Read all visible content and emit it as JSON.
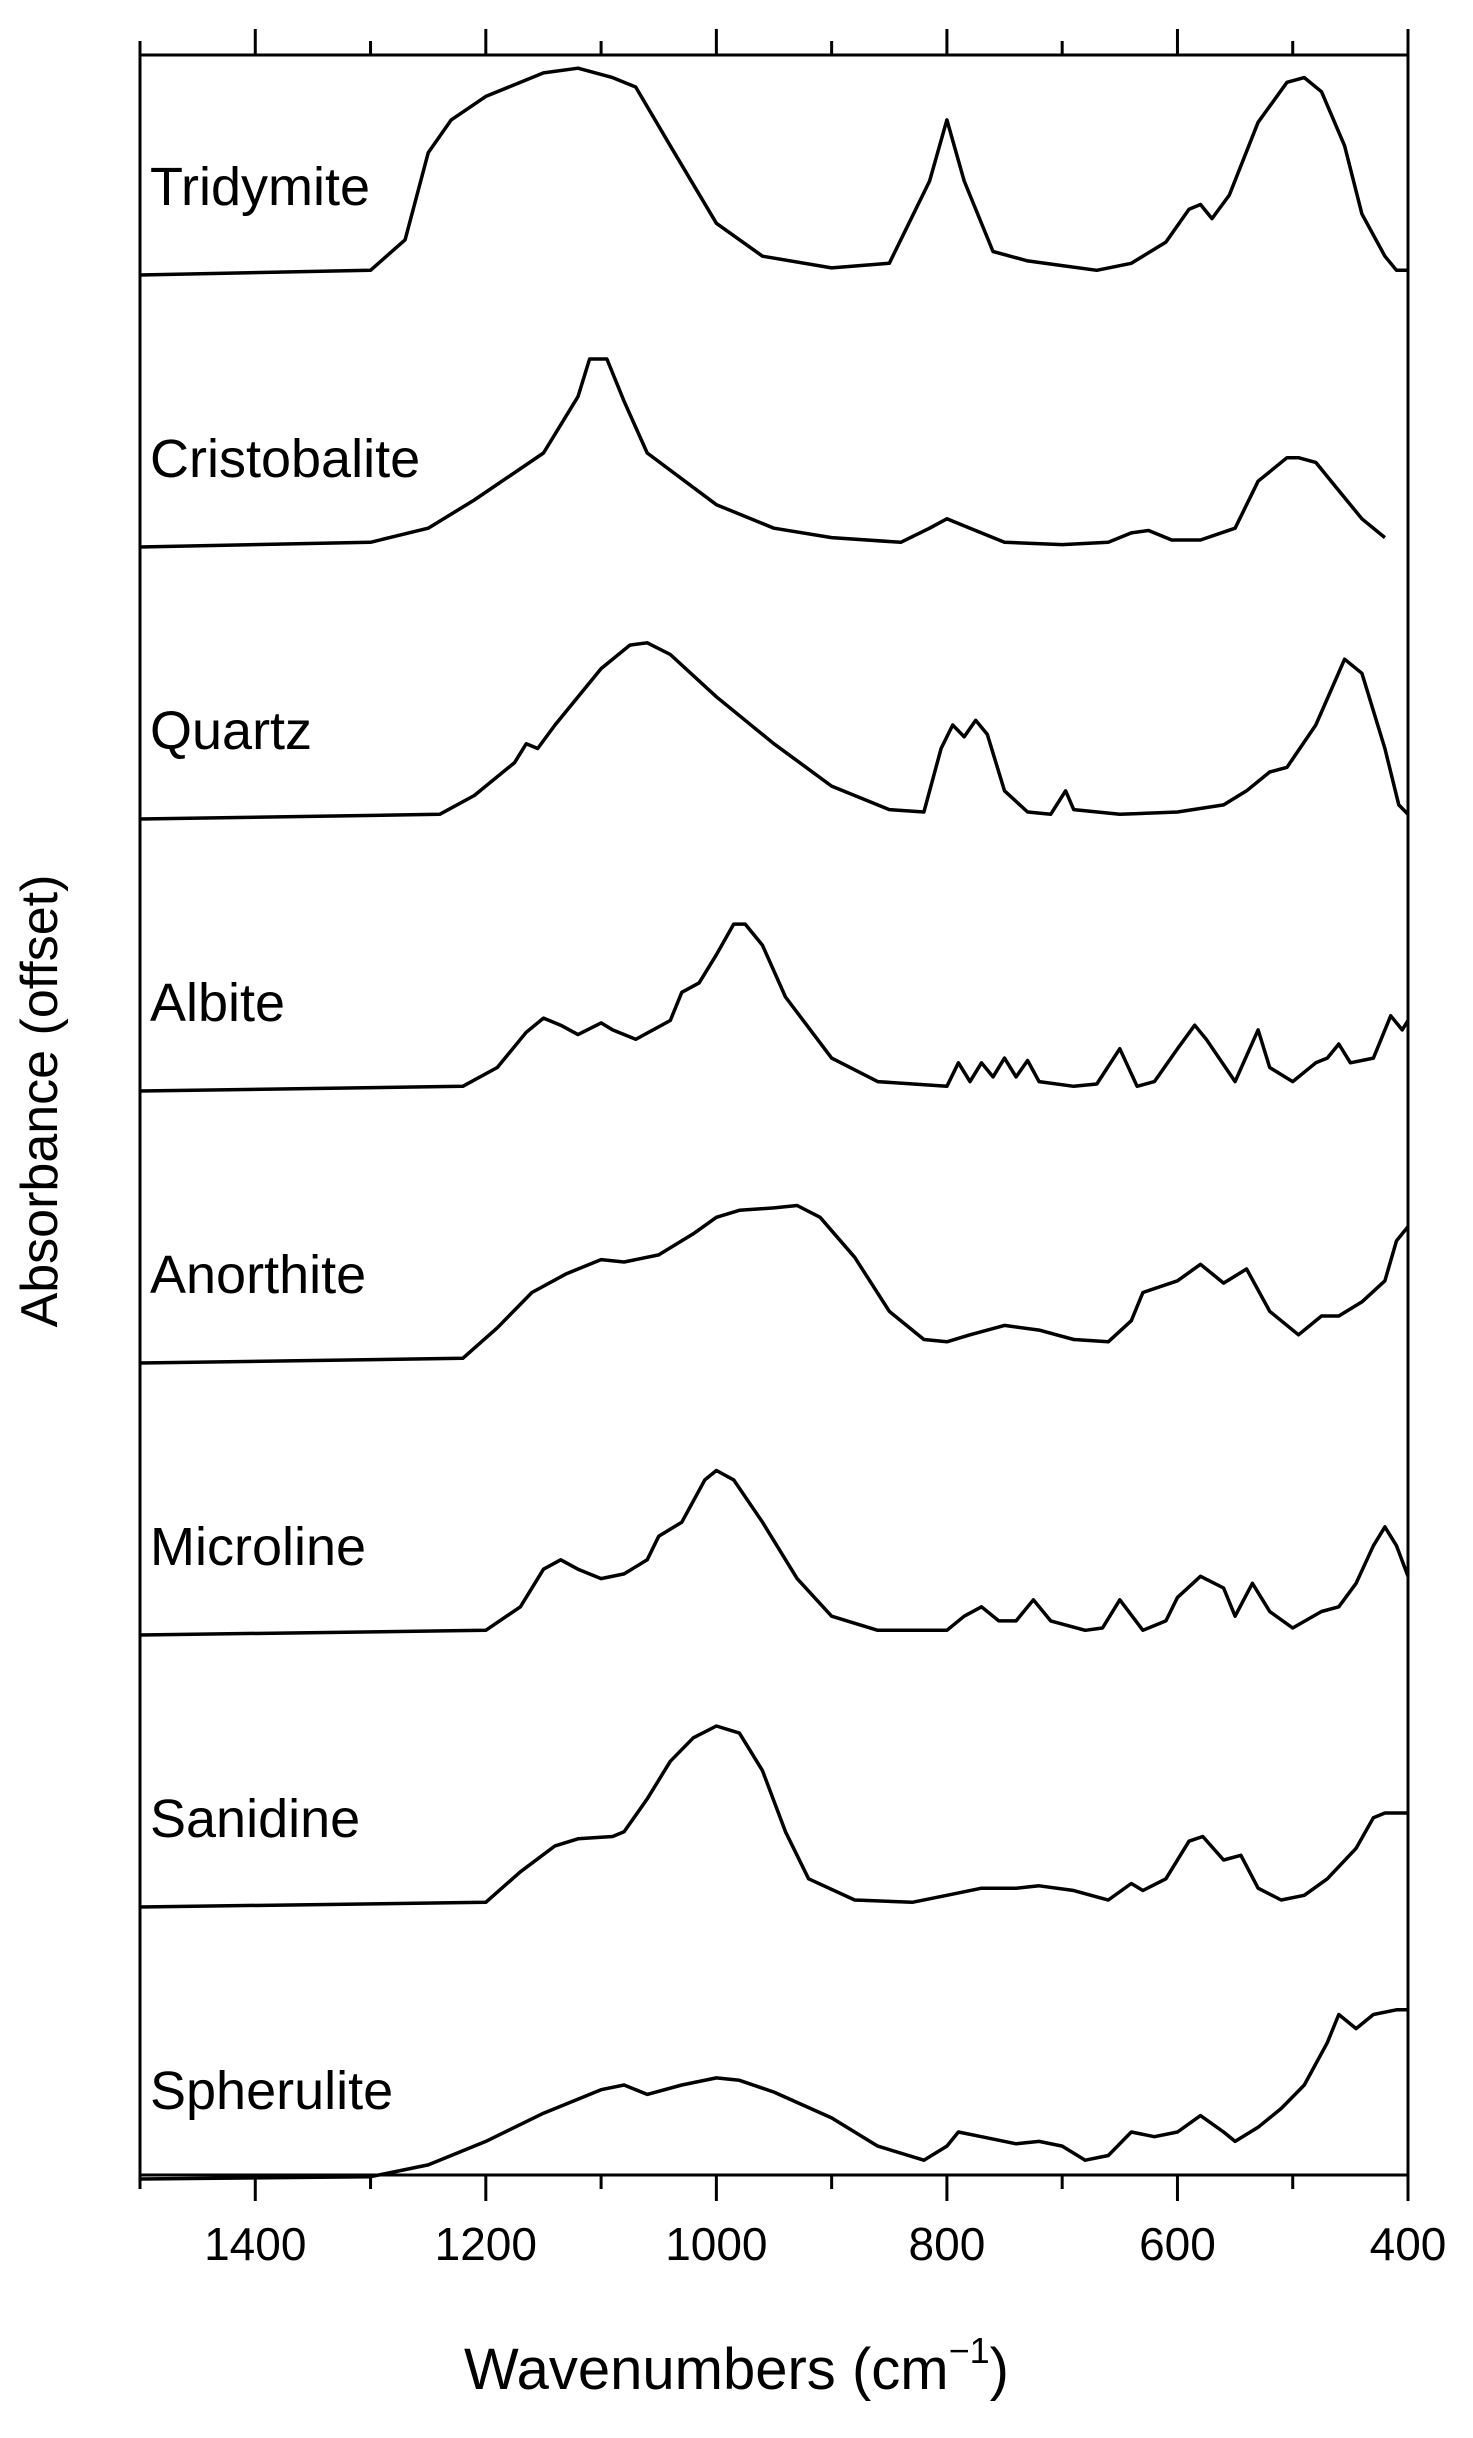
{
  "chart_data": {
    "type": "line",
    "title": "",
    "xlabel": "Wavenumbers",
    "xlabel_unit_base": "(cm",
    "xlabel_unit_exp": "−1",
    "xlabel_unit_close": ")",
    "ylabel": "Absorbance (offset)",
    "x_reversed": true,
    "xlim": [
      1500,
      400
    ],
    "xticks": [
      1400,
      1200,
      1000,
      800,
      600,
      400
    ],
    "xtick_labels": [
      "1400",
      "1200",
      "1000",
      "800",
      "600",
      "400"
    ],
    "minor_xticks": [
      1500,
      1300,
      1100,
      900,
      700,
      500
    ],
    "grid": false,
    "legend": "none",
    "line_color": "#000000",
    "series": [
      {
        "name": "Tridymite",
        "points": [
          [
            1500,
            0.0
          ],
          [
            1300,
            0.02
          ],
          [
            1270,
            0.15
          ],
          [
            1250,
            0.52
          ],
          [
            1230,
            0.66
          ],
          [
            1200,
            0.76
          ],
          [
            1150,
            0.86
          ],
          [
            1120,
            0.88
          ],
          [
            1090,
            0.84
          ],
          [
            1070,
            0.8
          ],
          [
            1040,
            0.55
          ],
          [
            1000,
            0.22
          ],
          [
            960,
            0.08
          ],
          [
            900,
            0.03
          ],
          [
            850,
            0.05
          ],
          [
            815,
            0.4
          ],
          [
            800,
            0.66
          ],
          [
            785,
            0.4
          ],
          [
            760,
            0.1
          ],
          [
            730,
            0.06
          ],
          [
            700,
            0.04
          ],
          [
            670,
            0.02
          ],
          [
            640,
            0.05
          ],
          [
            610,
            0.14
          ],
          [
            590,
            0.28
          ],
          [
            580,
            0.3
          ],
          [
            570,
            0.24
          ],
          [
            555,
            0.34
          ],
          [
            530,
            0.65
          ],
          [
            505,
            0.82
          ],
          [
            490,
            0.84
          ],
          [
            475,
            0.78
          ],
          [
            455,
            0.55
          ],
          [
            440,
            0.26
          ],
          [
            420,
            0.08
          ],
          [
            410,
            0.02
          ],
          [
            400,
            0.02
          ]
        ]
      },
      {
        "name": "Cristobalite",
        "points": [
          [
            1500,
            0.0
          ],
          [
            1300,
            0.02
          ],
          [
            1250,
            0.08
          ],
          [
            1210,
            0.2
          ],
          [
            1180,
            0.3
          ],
          [
            1150,
            0.4
          ],
          [
            1120,
            0.64
          ],
          [
            1110,
            0.8
          ],
          [
            1095,
            0.8
          ],
          [
            1080,
            0.62
          ],
          [
            1060,
            0.4
          ],
          [
            1000,
            0.18
          ],
          [
            950,
            0.08
          ],
          [
            900,
            0.04
          ],
          [
            840,
            0.02
          ],
          [
            815,
            0.08
          ],
          [
            800,
            0.12
          ],
          [
            780,
            0.08
          ],
          [
            750,
            0.02
          ],
          [
            700,
            0.01
          ],
          [
            660,
            0.02
          ],
          [
            640,
            0.06
          ],
          [
            625,
            0.07
          ],
          [
            605,
            0.03
          ],
          [
            580,
            0.03
          ],
          [
            550,
            0.08
          ],
          [
            530,
            0.28
          ],
          [
            505,
            0.38
          ],
          [
            495,
            0.38
          ],
          [
            480,
            0.36
          ],
          [
            460,
            0.24
          ],
          [
            440,
            0.12
          ],
          [
            420,
            0.04
          ]
        ]
      },
      {
        "name": "Quartz",
        "points": [
          [
            1500,
            0.0
          ],
          [
            1240,
            0.02
          ],
          [
            1210,
            0.1
          ],
          [
            1175,
            0.24
          ],
          [
            1165,
            0.32
          ],
          [
            1155,
            0.3
          ],
          [
            1140,
            0.4
          ],
          [
            1100,
            0.64
          ],
          [
            1075,
            0.74
          ],
          [
            1060,
            0.75
          ],
          [
            1040,
            0.7
          ],
          [
            1000,
            0.52
          ],
          [
            950,
            0.32
          ],
          [
            900,
            0.14
          ],
          [
            850,
            0.04
          ],
          [
            820,
            0.03
          ],
          [
            805,
            0.3
          ],
          [
            795,
            0.4
          ],
          [
            785,
            0.35
          ],
          [
            775,
            0.42
          ],
          [
            765,
            0.36
          ],
          [
            750,
            0.12
          ],
          [
            730,
            0.03
          ],
          [
            710,
            0.02
          ],
          [
            697,
            0.12
          ],
          [
            690,
            0.04
          ],
          [
            650,
            0.02
          ],
          [
            600,
            0.03
          ],
          [
            560,
            0.06
          ],
          [
            540,
            0.12
          ],
          [
            520,
            0.2
          ],
          [
            505,
            0.22
          ],
          [
            480,
            0.4
          ],
          [
            455,
            0.68
          ],
          [
            440,
            0.62
          ],
          [
            420,
            0.3
          ],
          [
            408,
            0.06
          ],
          [
            400,
            0.02
          ]
        ]
      },
      {
        "name": "Albite",
        "points": [
          [
            1500,
            0.0
          ],
          [
            1220,
            0.02
          ],
          [
            1190,
            0.1
          ],
          [
            1165,
            0.25
          ],
          [
            1150,
            0.31
          ],
          [
            1135,
            0.28
          ],
          [
            1120,
            0.24
          ],
          [
            1100,
            0.29
          ],
          [
            1090,
            0.26
          ],
          [
            1070,
            0.22
          ],
          [
            1040,
            0.3
          ],
          [
            1030,
            0.42
          ],
          [
            1015,
            0.46
          ],
          [
            1000,
            0.58
          ],
          [
            985,
            0.71
          ],
          [
            975,
            0.71
          ],
          [
            960,
            0.62
          ],
          [
            940,
            0.4
          ],
          [
            900,
            0.14
          ],
          [
            860,
            0.04
          ],
          [
            800,
            0.02
          ],
          [
            790,
            0.12
          ],
          [
            780,
            0.04
          ],
          [
            770,
            0.12
          ],
          [
            760,
            0.06
          ],
          [
            750,
            0.14
          ],
          [
            740,
            0.06
          ],
          [
            730,
            0.13
          ],
          [
            720,
            0.04
          ],
          [
            690,
            0.02
          ],
          [
            670,
            0.03
          ],
          [
            650,
            0.18
          ],
          [
            635,
            0.02
          ],
          [
            620,
            0.04
          ],
          [
            600,
            0.18
          ],
          [
            585,
            0.28
          ],
          [
            575,
            0.22
          ],
          [
            550,
            0.04
          ],
          [
            530,
            0.26
          ],
          [
            520,
            0.1
          ],
          [
            500,
            0.04
          ],
          [
            480,
            0.12
          ],
          [
            470,
            0.14
          ],
          [
            460,
            0.2
          ],
          [
            450,
            0.12
          ],
          [
            430,
            0.14
          ],
          [
            415,
            0.32
          ],
          [
            405,
            0.26
          ],
          [
            400,
            0.3
          ]
        ]
      },
      {
        "name": "Anorthite",
        "points": [
          [
            1500,
            0.0
          ],
          [
            1220,
            0.02
          ],
          [
            1190,
            0.15
          ],
          [
            1160,
            0.3
          ],
          [
            1130,
            0.38
          ],
          [
            1100,
            0.44
          ],
          [
            1080,
            0.43
          ],
          [
            1050,
            0.46
          ],
          [
            1020,
            0.55
          ],
          [
            1000,
            0.62
          ],
          [
            980,
            0.65
          ],
          [
            950,
            0.66
          ],
          [
            930,
            0.67
          ],
          [
            910,
            0.62
          ],
          [
            880,
            0.45
          ],
          [
            850,
            0.22
          ],
          [
            820,
            0.1
          ],
          [
            800,
            0.09
          ],
          [
            780,
            0.12
          ],
          [
            750,
            0.16
          ],
          [
            720,
            0.14
          ],
          [
            690,
            0.1
          ],
          [
            660,
            0.09
          ],
          [
            640,
            0.18
          ],
          [
            630,
            0.3
          ],
          [
            600,
            0.35
          ],
          [
            580,
            0.42
          ],
          [
            560,
            0.34
          ],
          [
            540,
            0.4
          ],
          [
            520,
            0.22
          ],
          [
            495,
            0.12
          ],
          [
            475,
            0.2
          ],
          [
            460,
            0.2
          ],
          [
            440,
            0.26
          ],
          [
            420,
            0.35
          ],
          [
            410,
            0.52
          ],
          [
            400,
            0.58
          ]
        ]
      },
      {
        "name": "Microline",
        "points": [
          [
            1500,
            0.0
          ],
          [
            1200,
            0.02
          ],
          [
            1170,
            0.12
          ],
          [
            1150,
            0.28
          ],
          [
            1135,
            0.32
          ],
          [
            1120,
            0.28
          ],
          [
            1100,
            0.24
          ],
          [
            1080,
            0.26
          ],
          [
            1060,
            0.32
          ],
          [
            1050,
            0.42
          ],
          [
            1030,
            0.48
          ],
          [
            1010,
            0.66
          ],
          [
            1000,
            0.7
          ],
          [
            985,
            0.66
          ],
          [
            960,
            0.48
          ],
          [
            930,
            0.24
          ],
          [
            900,
            0.08
          ],
          [
            860,
            0.02
          ],
          [
            800,
            0.02
          ],
          [
            785,
            0.08
          ],
          [
            770,
            0.12
          ],
          [
            755,
            0.06
          ],
          [
            740,
            0.06
          ],
          [
            725,
            0.15
          ],
          [
            710,
            0.06
          ],
          [
            680,
            0.02
          ],
          [
            665,
            0.03
          ],
          [
            650,
            0.15
          ],
          [
            630,
            0.02
          ],
          [
            610,
            0.06
          ],
          [
            600,
            0.16
          ],
          [
            580,
            0.25
          ],
          [
            560,
            0.2
          ],
          [
            550,
            0.08
          ],
          [
            535,
            0.22
          ],
          [
            520,
            0.1
          ],
          [
            500,
            0.03
          ],
          [
            475,
            0.1
          ],
          [
            460,
            0.12
          ],
          [
            445,
            0.22
          ],
          [
            430,
            0.38
          ],
          [
            420,
            0.46
          ],
          [
            410,
            0.38
          ],
          [
            400,
            0.25
          ]
        ]
      },
      {
        "name": "Sanidine",
        "points": [
          [
            1500,
            0.0
          ],
          [
            1200,
            0.02
          ],
          [
            1170,
            0.15
          ],
          [
            1140,
            0.26
          ],
          [
            1120,
            0.29
          ],
          [
            1090,
            0.3
          ],
          [
            1080,
            0.32
          ],
          [
            1060,
            0.46
          ],
          [
            1040,
            0.62
          ],
          [
            1020,
            0.72
          ],
          [
            1000,
            0.77
          ],
          [
            980,
            0.74
          ],
          [
            960,
            0.58
          ],
          [
            940,
            0.32
          ],
          [
            920,
            0.12
          ],
          [
            880,
            0.03
          ],
          [
            830,
            0.02
          ],
          [
            800,
            0.05
          ],
          [
            770,
            0.08
          ],
          [
            740,
            0.08
          ],
          [
            720,
            0.09
          ],
          [
            690,
            0.07
          ],
          [
            660,
            0.03
          ],
          [
            640,
            0.1
          ],
          [
            630,
            0.07
          ],
          [
            610,
            0.12
          ],
          [
            590,
            0.28
          ],
          [
            578,
            0.3
          ],
          [
            560,
            0.2
          ],
          [
            545,
            0.22
          ],
          [
            530,
            0.08
          ],
          [
            510,
            0.03
          ],
          [
            490,
            0.05
          ],
          [
            470,
            0.12
          ],
          [
            445,
            0.25
          ],
          [
            430,
            0.38
          ],
          [
            420,
            0.4
          ],
          [
            400,
            0.4
          ]
        ]
      },
      {
        "name": "Spherulite",
        "points": [
          [
            1500,
            0.0
          ],
          [
            1300,
            0.01
          ],
          [
            1250,
            0.06
          ],
          [
            1200,
            0.16
          ],
          [
            1150,
            0.28
          ],
          [
            1100,
            0.38
          ],
          [
            1080,
            0.4
          ],
          [
            1060,
            0.36
          ],
          [
            1030,
            0.4
          ],
          [
            1000,
            0.43
          ],
          [
            980,
            0.42
          ],
          [
            950,
            0.37
          ],
          [
            900,
            0.26
          ],
          [
            860,
            0.14
          ],
          [
            820,
            0.08
          ],
          [
            800,
            0.14
          ],
          [
            790,
            0.2
          ],
          [
            770,
            0.18
          ],
          [
            740,
            0.15
          ],
          [
            720,
            0.16
          ],
          [
            700,
            0.14
          ],
          [
            680,
            0.08
          ],
          [
            660,
            0.1
          ],
          [
            640,
            0.2
          ],
          [
            620,
            0.18
          ],
          [
            600,
            0.2
          ],
          [
            580,
            0.27
          ],
          [
            560,
            0.2
          ],
          [
            550,
            0.16
          ],
          [
            530,
            0.22
          ],
          [
            510,
            0.3
          ],
          [
            490,
            0.4
          ],
          [
            470,
            0.58
          ],
          [
            460,
            0.7
          ],
          [
            445,
            0.64
          ],
          [
            430,
            0.7
          ],
          [
            410,
            0.72
          ],
          [
            400,
            0.72
          ]
        ]
      }
    ]
  }
}
